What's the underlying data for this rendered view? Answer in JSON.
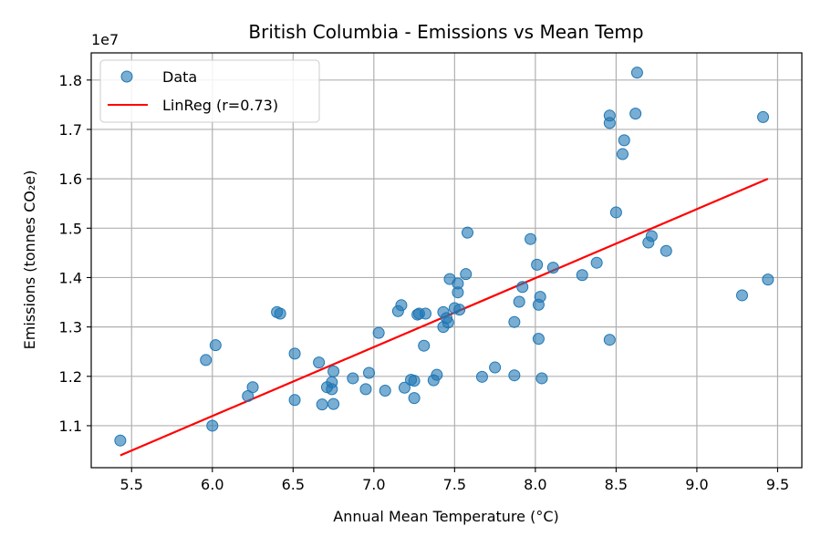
{
  "chart_data": {
    "type": "scatter",
    "title": "British Columbia - Emissions vs Mean Temp",
    "xlabel": "Annual Mean Temperature (°C)",
    "ylabel": "Emissions (tonnes CO₂e)",
    "y_offset_label": "1e7",
    "xlim": [
      5.25,
      9.65
    ],
    "ylim": [
      10.15,
      18.55
    ],
    "xticks": [
      5.5,
      6.0,
      6.5,
      7.0,
      7.5,
      8.0,
      8.5,
      9.0,
      9.5
    ],
    "xtick_labels": [
      "5.5",
      "6.0",
      "6.5",
      "7.0",
      "7.5",
      "8.0",
      "8.5",
      "9.0",
      "9.5"
    ],
    "yticks": [
      11,
      12,
      13,
      14,
      15,
      16,
      17,
      18
    ],
    "ytick_labels": [
      "1.1",
      "1.2",
      "1.3",
      "1.4",
      "1.5",
      "1.6",
      "1.7",
      "1.8"
    ],
    "grid": true,
    "legend_position": "top-left",
    "colors": {
      "scatter": "#1f77b4",
      "regression": "#ff0000"
    },
    "series": [
      {
        "name": "Data",
        "kind": "scatter",
        "points": [
          [
            5.43,
            10.7
          ],
          [
            5.96,
            12.33
          ],
          [
            6.0,
            11.0
          ],
          [
            6.02,
            12.63
          ],
          [
            6.22,
            11.6
          ],
          [
            6.25,
            11.78
          ],
          [
            6.4,
            13.3
          ],
          [
            6.42,
            13.27
          ],
          [
            6.51,
            12.46
          ],
          [
            6.51,
            11.52
          ],
          [
            6.66,
            12.28
          ],
          [
            6.68,
            11.43
          ],
          [
            6.71,
            11.78
          ],
          [
            6.74,
            11.74
          ],
          [
            6.74,
            11.88
          ],
          [
            6.75,
            12.1
          ],
          [
            6.75,
            11.44
          ],
          [
            6.87,
            11.96
          ],
          [
            6.95,
            11.74
          ],
          [
            6.97,
            12.07
          ],
          [
            7.03,
            12.88
          ],
          [
            7.07,
            11.71
          ],
          [
            7.15,
            13.32
          ],
          [
            7.17,
            13.44
          ],
          [
            7.19,
            11.77
          ],
          [
            7.23,
            11.93
          ],
          [
            7.25,
            11.91
          ],
          [
            7.25,
            11.56
          ],
          [
            7.27,
            13.25
          ],
          [
            7.28,
            13.27
          ],
          [
            7.31,
            12.62
          ],
          [
            7.32,
            13.27
          ],
          [
            7.37,
            11.92
          ],
          [
            7.39,
            12.03
          ],
          [
            7.43,
            13.0
          ],
          [
            7.43,
            13.3
          ],
          [
            7.45,
            13.18
          ],
          [
            7.46,
            13.09
          ],
          [
            7.47,
            13.97
          ],
          [
            7.5,
            13.38
          ],
          [
            7.52,
            13.88
          ],
          [
            7.52,
            13.7
          ],
          [
            7.53,
            13.35
          ],
          [
            7.57,
            14.07
          ],
          [
            7.58,
            14.91
          ],
          [
            7.67,
            11.99
          ],
          [
            7.75,
            12.18
          ],
          [
            7.87,
            13.1
          ],
          [
            7.87,
            12.02
          ],
          [
            7.9,
            13.51
          ],
          [
            7.92,
            13.81
          ],
          [
            7.97,
            14.78
          ],
          [
            8.01,
            14.26
          ],
          [
            8.02,
            13.45
          ],
          [
            8.02,
            12.76
          ],
          [
            8.03,
            13.61
          ],
          [
            8.04,
            11.96
          ],
          [
            8.11,
            14.2
          ],
          [
            8.29,
            14.05
          ],
          [
            8.38,
            14.3
          ],
          [
            8.46,
            17.28
          ],
          [
            8.46,
            17.13
          ],
          [
            8.46,
            12.74
          ],
          [
            8.5,
            15.32
          ],
          [
            8.54,
            16.5
          ],
          [
            8.55,
            16.78
          ],
          [
            8.62,
            17.32
          ],
          [
            8.63,
            18.15
          ],
          [
            8.7,
            14.71
          ],
          [
            8.72,
            14.84
          ],
          [
            8.81,
            14.54
          ],
          [
            9.28,
            13.64
          ],
          [
            9.41,
            17.25
          ],
          [
            9.44,
            13.96
          ]
        ]
      },
      {
        "name": "LinReg (r=0.73)",
        "kind": "line",
        "points": [
          [
            5.43,
            10.4
          ],
          [
            9.44,
            16.0
          ]
        ]
      }
    ]
  }
}
